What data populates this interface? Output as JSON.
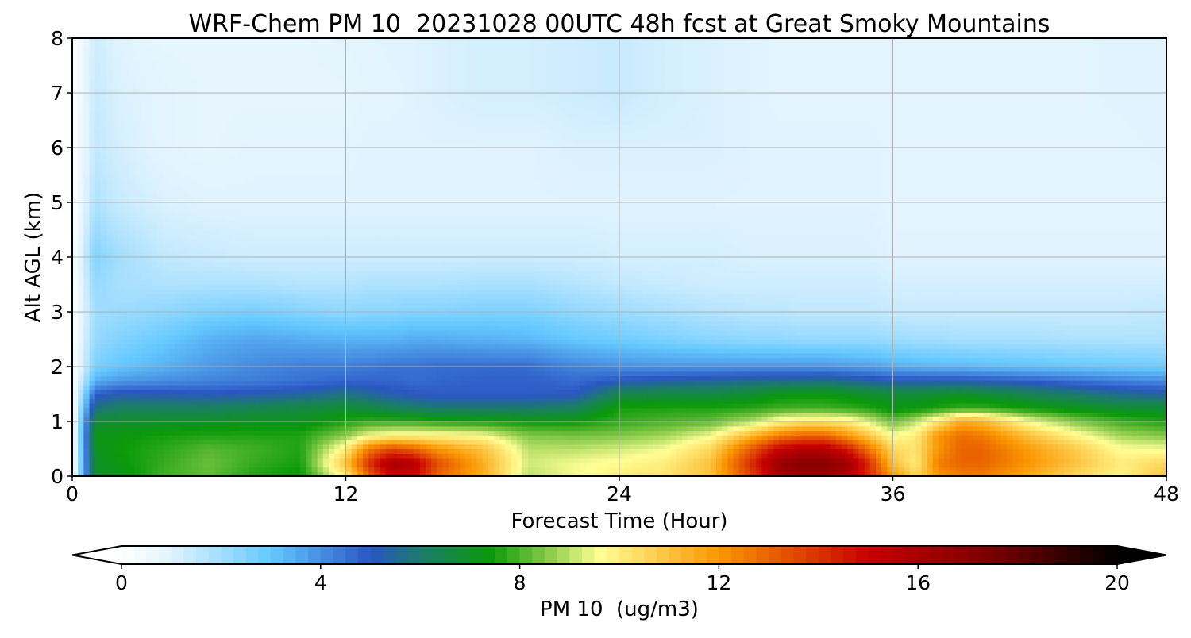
{
  "chart_data": {
    "type": "heatmap",
    "title": "WRF-Chem PM 10  20231028 00UTC 48h fcst at Great Smoky Mountains",
    "xlabel": "Forecast Time (Hour)",
    "ylabel": "Alt AGL (km)",
    "xlim": [
      0,
      48
    ],
    "ylim": [
      0,
      8
    ],
    "x_ticks": [
      0,
      12,
      24,
      36,
      48
    ],
    "y_ticks": [
      0,
      1,
      2,
      3,
      4,
      5,
      6,
      7,
      8
    ],
    "grid": true,
    "x": [
      0,
      1,
      2,
      4,
      6,
      8,
      10,
      12,
      13,
      14,
      15,
      16,
      18,
      20,
      22,
      24,
      26,
      28,
      30,
      31,
      32,
      33,
      34,
      35,
      36,
      37,
      38,
      39,
      40,
      42,
      44,
      46,
      48
    ],
    "y": [
      0,
      0.25,
      0.5,
      0.75,
      1.0,
      1.25,
      1.5,
      1.75,
      2.0,
      2.5,
      3.0,
      3.5,
      4.0,
      5.0,
      6.0,
      7.0,
      8.0
    ],
    "z": [
      [
        0,
        6.9,
        7.1,
        7.9,
        8.2,
        7.6,
        7.3,
        10,
        13,
        15,
        15,
        13,
        11.5,
        9,
        9.5,
        10,
        10.2,
        11,
        14,
        16,
        16.5,
        16.5,
        15.8,
        14,
        12,
        10.5,
        12,
        12.5,
        12.5,
        11.5,
        10.5,
        9.8,
        11
      ],
      [
        0,
        7,
        7.3,
        7.8,
        8.3,
        7.8,
        7.5,
        11,
        14,
        16,
        15.5,
        13.5,
        11.5,
        9.2,
        9.5,
        9.7,
        10,
        11,
        14.5,
        16.5,
        17,
        17,
        16.2,
        14,
        11,
        10,
        12.5,
        13,
        13,
        12,
        11,
        10,
        10.5
      ],
      [
        0,
        7.1,
        7.4,
        7.7,
        8.1,
        7.9,
        7.6,
        10,
        12.5,
        13.5,
        13,
        12,
        11,
        9,
        9,
        9.2,
        9.5,
        10.5,
        13.5,
        15,
        15.5,
        15.5,
        14.5,
        12.5,
        10.5,
        10.2,
        12,
        13,
        13,
        11.8,
        10.8,
        9.6,
        9.5
      ],
      [
        0,
        7.2,
        7.3,
        7.5,
        7.6,
        7.6,
        7.6,
        8.6,
        9.5,
        9.8,
        9.8,
        9.8,
        9.6,
        8.5,
        8.4,
        8.5,
        8.8,
        9.5,
        11.5,
        12.5,
        13,
        13,
        12,
        10.8,
        9.6,
        10,
        12,
        12.8,
        12.5,
        11,
        9.8,
        8.8,
        8.5
      ],
      [
        0,
        6.8,
        6.9,
        7.0,
        7.0,
        7.1,
        7.1,
        7.6,
        7.8,
        7.8,
        7.8,
        7.6,
        7.5,
        7.4,
        7.4,
        7.8,
        8.0,
        8.2,
        9.0,
        9.8,
        10.2,
        10.2,
        10.0,
        9.2,
        8.3,
        9.0,
        10.2,
        11.5,
        11.2,
        9.5,
        8.5,
        7.9,
        7.6
      ],
      [
        0,
        5.8,
        6.2,
        6.2,
        6.2,
        6.4,
        6.6,
        6.8,
        6.6,
        6.3,
        6.1,
        6.0,
        6.0,
        6.0,
        6.2,
        7.5,
        7.6,
        7.6,
        7.7,
        7.9,
        7.9,
        7.9,
        7.8,
        7.6,
        7.2,
        7.3,
        7.6,
        7.8,
        7.8,
        7.4,
        7.1,
        6.8,
        6.8
      ],
      [
        0,
        4.8,
        5.2,
        5.2,
        5.1,
        5.2,
        5.4,
        5.8,
        5.5,
        5.2,
        5.0,
        4.9,
        4.9,
        4.9,
        5.0,
        6.5,
        6.6,
        6.6,
        6.9,
        7.2,
        7.3,
        7.3,
        7.1,
        6.9,
        6.8,
        6.8,
        6.9,
        7.0,
        6.8,
        6.4,
        6.0,
        5.6,
        5.4
      ],
      [
        0,
        3.4,
        3.8,
        4.0,
        4.2,
        4.3,
        4.5,
        4.7,
        4.7,
        4.7,
        4.6,
        4.7,
        4.8,
        4.8,
        4.6,
        5.0,
        5.3,
        5.4,
        5.6,
        5.6,
        5.6,
        5.7,
        5.5,
        5.3,
        5.1,
        5.1,
        5.1,
        5.1,
        5.0,
        4.8,
        4.5,
        4.2,
        4.0
      ],
      [
        0,
        2.6,
        3.0,
        3.4,
        3.8,
        4.1,
        4.3,
        4.3,
        4.4,
        4.5,
        4.5,
        4.6,
        4.6,
        4.6,
        4.2,
        4.0,
        3.9,
        3.9,
        3.9,
        3.9,
        3.9,
        3.9,
        3.8,
        3.7,
        3.5,
        3.4,
        3.3,
        3.3,
        3.2,
        3.1,
        3.0,
        2.9,
        2.8
      ],
      [
        0,
        2.2,
        2.5,
        2.9,
        3.4,
        3.6,
        3.5,
        3.4,
        3.4,
        3.4,
        3.5,
        3.5,
        3.4,
        3.3,
        3.0,
        2.8,
        2.6,
        2.4,
        2.3,
        2.3,
        2.2,
        2.2,
        2.2,
        2.2,
        2.1,
        2.0,
        2.0,
        1.9,
        1.9,
        1.9,
        1.8,
        1.8,
        1.8
      ],
      [
        0,
        2.0,
        2.1,
        2.3,
        2.6,
        2.7,
        2.5,
        2.3,
        2.4,
        2.4,
        2.5,
        2.5,
        2.6,
        2.6,
        2.3,
        2.1,
        1.9,
        1.7,
        1.6,
        1.6,
        1.5,
        1.5,
        1.5,
        1.5,
        1.4,
        1.4,
        1.4,
        1.4,
        1.4,
        1.4,
        1.4,
        1.4,
        1.5
      ],
      [
        0,
        2.2,
        1.9,
        1.8,
        1.8,
        1.8,
        1.7,
        1.7,
        1.8,
        1.8,
        1.8,
        1.8,
        1.9,
        1.9,
        1.7,
        1.5,
        1.4,
        1.3,
        1.3,
        1.3,
        1.3,
        1.3,
        1.3,
        1.3,
        1.2,
        1.2,
        1.2,
        1.2,
        1.2,
        1.2,
        1.2,
        1.2,
        1.2
      ],
      [
        0,
        2.5,
        2.0,
        1.5,
        1.4,
        1.3,
        1.3,
        1.3,
        1.3,
        1.3,
        1.3,
        1.3,
        1.3,
        1.3,
        1.3,
        1.2,
        1.2,
        1.2,
        1.1,
        1.1,
        1.1,
        1.1,
        1.1,
        1.1,
        1.0,
        1.0,
        1.0,
        1.0,
        1.0,
        1.0,
        1.0,
        1.0,
        1.0
      ],
      [
        0,
        1.8,
        1.4,
        1.1,
        1.0,
        1.0,
        1.0,
        1.0,
        1.0,
        1.0,
        1.0,
        1.0,
        1.0,
        1.0,
        1.0,
        1.0,
        1.0,
        1.0,
        1.0,
        1.0,
        1.0,
        1.0,
        1.0,
        1.0,
        0.9,
        0.9,
        0.9,
        0.9,
        0.9,
        0.9,
        0.9,
        0.9,
        0.9
      ],
      [
        0,
        1.5,
        1.2,
        0.9,
        0.8,
        0.9,
        0.9,
        0.9,
        1.0,
        1.0,
        1.0,
        1.0,
        1.0,
        1.0,
        1.1,
        1.1,
        1.1,
        1.1,
        1.0,
        1.0,
        1.0,
        1.0,
        1.0,
        1.0,
        0.9,
        0.9,
        0.9,
        0.9,
        0.9,
        0.9,
        0.9,
        0.9,
        1.0
      ],
      [
        0,
        1.4,
        1.1,
        0.9,
        0.8,
        0.8,
        0.8,
        0.8,
        0.9,
        0.9,
        1.0,
        1.1,
        1.2,
        1.2,
        1.3,
        1.4,
        1.2,
        1.1,
        1.0,
        0.9,
        0.9,
        0.9,
        0.9,
        0.9,
        0.9,
        0.9,
        0.9,
        0.9,
        0.9,
        0.9,
        0.9,
        1.0,
        1.0
      ],
      [
        0,
        1.3,
        1.0,
        0.8,
        0.8,
        0.8,
        0.8,
        0.9,
        0.9,
        1.0,
        1.0,
        1.1,
        1.2,
        1.2,
        1.3,
        1.4,
        1.2,
        1.1,
        1.0,
        0.9,
        0.9,
        0.9,
        0.9,
        0.9,
        0.9,
        0.9,
        0.9,
        0.9,
        0.9,
        0.9,
        0.9,
        1.0,
        1.0
      ]
    ],
    "colorbar": {
      "label": "PM 10  (ug/m3)",
      "range": [
        0,
        20
      ],
      "ticks": [
        0,
        4,
        8,
        12,
        16,
        20
      ],
      "extend": "both",
      "stops": [
        {
          "v": 0,
          "c": "#ffffff"
        },
        {
          "v": 1,
          "c": "#e0f3fe"
        },
        {
          "v": 3,
          "c": "#64c8ff"
        },
        {
          "v": 5,
          "c": "#2a56c4"
        },
        {
          "v": 6,
          "c": "#1c7a6e"
        },
        {
          "v": 7.4,
          "c": "#0a9a0a"
        },
        {
          "v": 8.6,
          "c": "#8ccc4c"
        },
        {
          "v": 9.6,
          "c": "#ffff96"
        },
        {
          "v": 12,
          "c": "#fa9600"
        },
        {
          "v": 15,
          "c": "#c80000"
        },
        {
          "v": 17.5,
          "c": "#780000"
        },
        {
          "v": 20,
          "c": "#000000"
        }
      ]
    }
  }
}
